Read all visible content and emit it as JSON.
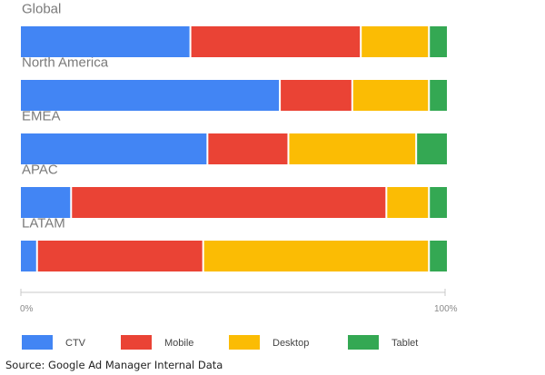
{
  "chart_data": {
    "type": "bar",
    "orientation": "horizontal",
    "stacked": true,
    "normalized_percent": true,
    "categories": [
      "Global",
      "North America",
      "EMEA",
      "APAC",
      "LATAM"
    ],
    "series": [
      {
        "name": "CTV",
        "color": "#4285F4",
        "values": [
          40,
          61,
          44,
          12,
          4
        ]
      },
      {
        "name": "Mobile",
        "color": "#EA4335",
        "values": [
          40,
          17,
          19,
          74,
          39
        ]
      },
      {
        "name": "Desktop",
        "color": "#FBBC04",
        "values": [
          16,
          18,
          30,
          10,
          53
        ]
      },
      {
        "name": "Tablet",
        "color": "#34A853",
        "values": [
          4,
          4,
          7,
          4,
          4
        ]
      }
    ],
    "x_ticks": [
      "0%",
      "100%"
    ],
    "xlim": [
      0,
      100
    ],
    "grid": false,
    "legend_position": "bottom"
  },
  "source": "Source: Google Ad Manager Internal Data"
}
